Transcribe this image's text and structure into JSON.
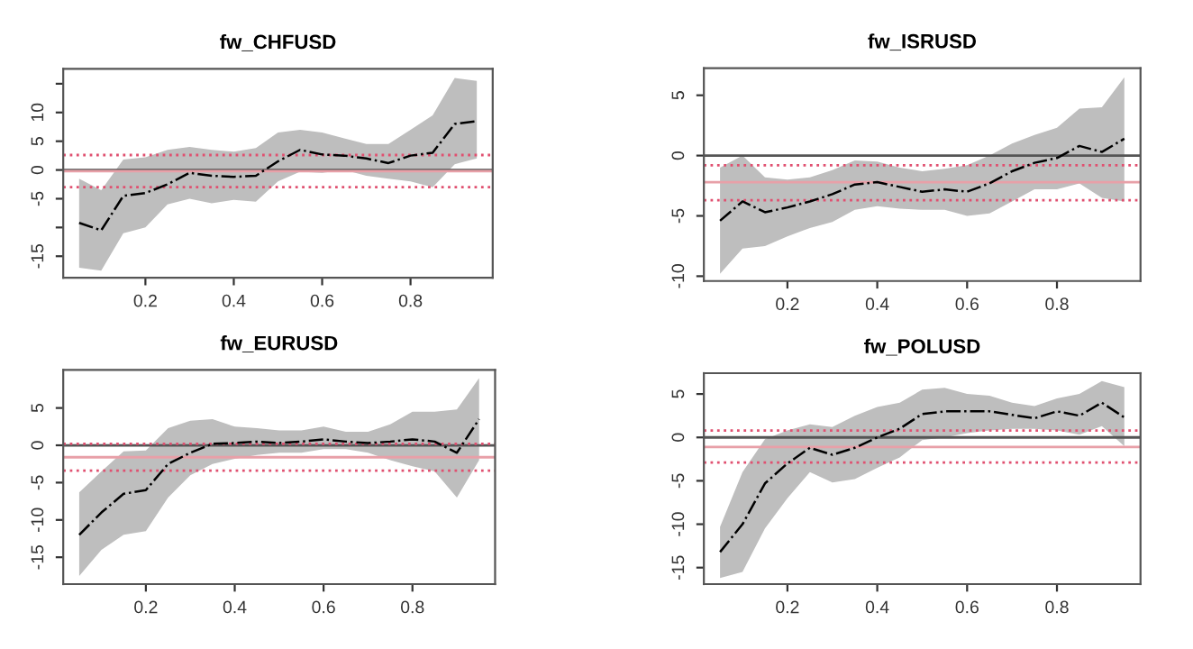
{
  "chart_data": [
    {
      "type": "line",
      "title": "fw_CHFUSD",
      "x": [
        0.05,
        0.1,
        0.15,
        0.2,
        0.25,
        0.3,
        0.35,
        0.4,
        0.45,
        0.5,
        0.55,
        0.6,
        0.65,
        0.7,
        0.75,
        0.8,
        0.85,
        0.9,
        0.95
      ],
      "series": [
        {
          "color": "#000000",
          "line_style": "dashdot",
          "values": [
            -9.2,
            -10.5,
            -4.5,
            -4,
            -2.5,
            -0.5,
            -1,
            -1.2,
            -1,
            1.5,
            3.5,
            2.7,
            2.5,
            2,
            1.2,
            2.5,
            3,
            8,
            8.5
          ],
          "upper": [
            -1.5,
            -3.5,
            1.8,
            2.2,
            3.5,
            4,
            3.5,
            3.2,
            3.8,
            6.5,
            7,
            6.5,
            5.5,
            4.5,
            4.5,
            7,
            9.5,
            16,
            15.5
          ],
          "lower": [
            -17,
            -17.5,
            -11,
            -10,
            -6,
            -5,
            -5.8,
            -5.2,
            -5.5,
            -2,
            -0.3,
            -0.5,
            0,
            -1,
            -1.5,
            -2,
            -3,
            1,
            2
          ]
        }
      ],
      "xlim": [
        0.014,
        0.986
      ],
      "xticks": [
        0.2,
        0.4,
        0.6,
        0.8
      ],
      "ylim": [
        -18.75,
        17.6
      ],
      "yticks": [
        -15,
        {
          "value": -10,
          "label": null
        },
        -5,
        0,
        5,
        10,
        {
          "value": 15,
          "label": null
        }
      ],
      "ref_lines": [
        {
          "axis": "y",
          "value": 0,
          "color": "#555555",
          "line_style": "solid"
        },
        {
          "axis": "y",
          "value": -0.2,
          "color": "#e8a0a8",
          "line_style": "solid"
        },
        {
          "axis": "y",
          "value": 2.6,
          "color": "#e05070",
          "line_style": "dotted"
        },
        {
          "axis": "y",
          "value": -3,
          "color": "#e05070",
          "line_style": "dotted"
        }
      ],
      "grid": false,
      "legend": false
    },
    {
      "type": "line",
      "title": "fw_ISRUSD",
      "x": [
        0.05,
        0.1,
        0.15,
        0.2,
        0.25,
        0.3,
        0.35,
        0.4,
        0.45,
        0.5,
        0.55,
        0.6,
        0.65,
        0.7,
        0.75,
        0.8,
        0.85,
        0.9,
        0.95
      ],
      "series": [
        {
          "color": "#000000",
          "line_style": "dashdot",
          "values": [
            -5.4,
            -3.8,
            -4.7,
            -4.3,
            -3.8,
            -3.2,
            -2.4,
            -2.2,
            -2.6,
            -3,
            -2.8,
            -3,
            -2.3,
            -1.3,
            -0.6,
            -0.2,
            0.8,
            0.3,
            1.4
          ],
          "upper": [
            -1,
            0,
            -1.8,
            -2,
            -1.8,
            -1.2,
            -0.4,
            -0.5,
            -1,
            -1.3,
            -1.1,
            -0.8,
            0,
            1,
            1.7,
            2.3,
            3.9,
            4,
            6.5
          ],
          "lower": [
            -9.8,
            -7.7,
            -7.5,
            -6.7,
            -6,
            -5.5,
            -4.5,
            -4.2,
            -4.4,
            -4.5,
            -4.5,
            -5,
            -4.8,
            -3.8,
            -2.8,
            -2.8,
            -2.3,
            -3.5,
            -3.8
          ]
        }
      ],
      "xlim": [
        0.014,
        0.986
      ],
      "xticks": [
        0.2,
        0.4,
        0.6,
        0.8
      ],
      "ylim": [
        -10.4,
        7.25
      ],
      "yticks": [
        -10,
        -5,
        0,
        5
      ],
      "ref_lines": [
        {
          "axis": "y",
          "value": 0,
          "color": "#555555",
          "line_style": "solid"
        },
        {
          "axis": "y",
          "value": -2.2,
          "color": "#e8a0a8",
          "line_style": "solid"
        },
        {
          "axis": "y",
          "value": -0.8,
          "color": "#e05070",
          "line_style": "dotted"
        },
        {
          "axis": "y",
          "value": -3.7,
          "color": "#e05070",
          "line_style": "dotted"
        }
      ],
      "grid": false,
      "legend": false
    },
    {
      "type": "line",
      "title": "fw_EURUSD",
      "x": [
        0.05,
        0.1,
        0.15,
        0.2,
        0.25,
        0.3,
        0.35,
        0.4,
        0.45,
        0.5,
        0.55,
        0.6,
        0.65,
        0.7,
        0.75,
        0.8,
        0.85,
        0.9,
        0.95
      ],
      "series": [
        {
          "color": "#000000",
          "line_style": "dashdot",
          "values": [
            -12,
            -9,
            -6.5,
            -6,
            -2.5,
            -1,
            0.2,
            0.3,
            0.5,
            0.3,
            0.5,
            0.8,
            0.5,
            0.3,
            0.5,
            0.8,
            0.5,
            -1,
            3.5
          ],
          "upper": [
            -6.3,
            -3.5,
            -0.8,
            -0.7,
            2.3,
            3.3,
            3.5,
            2.5,
            2.3,
            2,
            2,
            2.5,
            1.8,
            1.8,
            2.8,
            4.5,
            4.5,
            4.8,
            9
          ],
          "lower": [
            -17.5,
            -14,
            -12,
            -11.5,
            -7,
            -4,
            -2.5,
            -1.8,
            -1.3,
            -1,
            -1,
            -0.5,
            -0.5,
            -1,
            -2,
            -2.8,
            -3.5,
            -7,
            -2
          ]
        }
      ],
      "xlim": [
        0.014,
        0.986
      ],
      "xticks": [
        0.2,
        0.4,
        0.6,
        0.8
      ],
      "ylim": [
        -18.6,
        10.1
      ],
      "yticks": [
        -15,
        -10,
        -5,
        0,
        5
      ],
      "ref_lines": [
        {
          "axis": "y",
          "value": 0,
          "color": "#555555",
          "line_style": "solid"
        },
        {
          "axis": "y",
          "value": -1.6,
          "color": "#e8a0a8",
          "line_style": "solid"
        },
        {
          "axis": "y",
          "value": 0.2,
          "color": "#e05070",
          "line_style": "dotted"
        },
        {
          "axis": "y",
          "value": -3.4,
          "color": "#e05070",
          "line_style": "dotted"
        }
      ],
      "grid": false,
      "legend": false
    },
    {
      "type": "line",
      "title": "fw_POLUSD",
      "x": [
        0.05,
        0.1,
        0.15,
        0.2,
        0.25,
        0.3,
        0.35,
        0.4,
        0.45,
        0.5,
        0.55,
        0.6,
        0.65,
        0.7,
        0.75,
        0.8,
        0.85,
        0.9,
        0.95
      ],
      "series": [
        {
          "color": "#000000",
          "line_style": "dashdot",
          "values": [
            -13.2,
            -10,
            -5.3,
            -3,
            -1.2,
            -2,
            -1.2,
            0,
            1,
            2.7,
            3,
            3,
            3,
            2.6,
            2.2,
            3,
            2.5,
            4,
            2.3
          ],
          "upper": [
            -10.3,
            -4,
            -0.2,
            0.8,
            1.5,
            1.2,
            2.5,
            3.5,
            4,
            5.5,
            5.7,
            5,
            4.8,
            4,
            3.6,
            4.5,
            5,
            6.5,
            5.8
          ],
          "lower": [
            -16.2,
            -15.5,
            -10.5,
            -7,
            -4,
            -5.2,
            -4.8,
            -3.5,
            -2.3,
            -0.3,
            0,
            0.5,
            0.8,
            1,
            1,
            0.8,
            0.3,
            1.3,
            -1
          ]
        }
      ],
      "xlim": [
        0.014,
        0.986
      ],
      "xticks": [
        0.2,
        0.4,
        0.6,
        0.8
      ],
      "ylim": [
        -16.9,
        7.4
      ],
      "yticks": [
        -15,
        -10,
        -5,
        0,
        5
      ],
      "ref_lines": [
        {
          "axis": "y",
          "value": 0,
          "color": "#555555",
          "line_style": "solid"
        },
        {
          "axis": "y",
          "value": -1.1,
          "color": "#e8a0a8",
          "line_style": "solid"
        },
        {
          "axis": "y",
          "value": 0.8,
          "color": "#e05070",
          "line_style": "dotted"
        },
        {
          "axis": "y",
          "value": -2.9,
          "color": "#e05070",
          "line_style": "dotted"
        }
      ],
      "grid": false,
      "legend": false
    }
  ]
}
